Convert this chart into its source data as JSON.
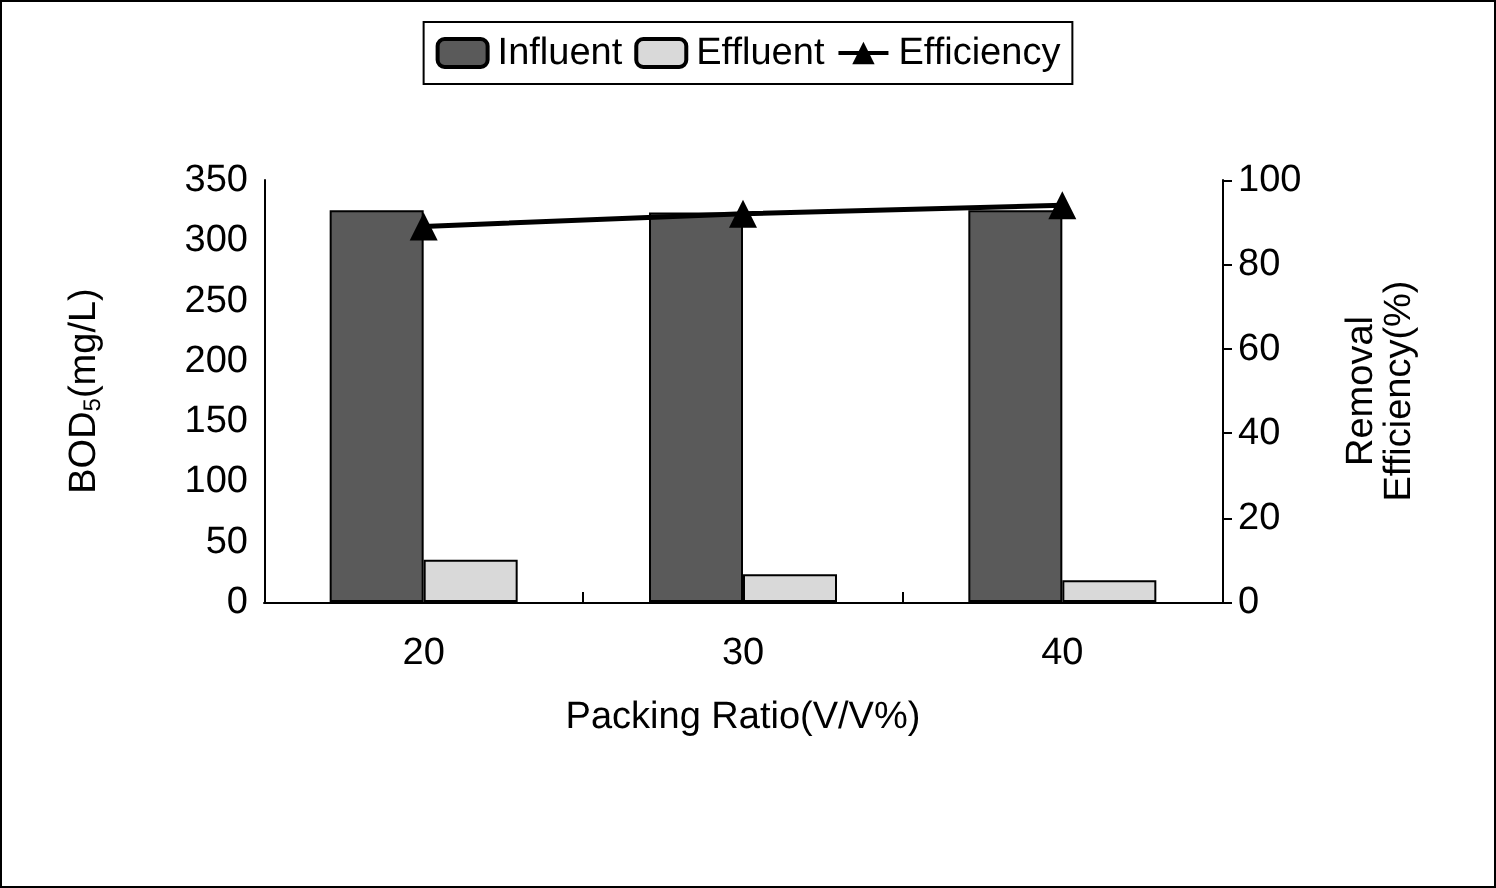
{
  "chart_data": {
    "type": "bar",
    "xlabel": "Packing Ratio(V/V%)",
    "ylabel": "BOD$_{5}$(mg/L)",
    "y2label": "Removal\nEfficiency(%)",
    "categories": [
      "20",
      "30",
      "40"
    ],
    "series": [
      {
        "name": "Influent",
        "color": "#5a5a5a",
        "values": [
          325,
          323,
          325
        ]
      },
      {
        "name": "Effluent",
        "color": "#d9d9d9",
        "values": [
          35,
          23,
          18
        ]
      },
      {
        "name": "Efficiency",
        "type": "line",
        "axis": "y2",
        "color": "#000000",
        "marker": "triangle",
        "values": [
          89,
          92,
          94
        ]
      }
    ],
    "ylim": [
      0,
      350
    ],
    "yticks": [
      0,
      50,
      100,
      150,
      200,
      250,
      300,
      350
    ],
    "y2lim": [
      0,
      100
    ],
    "y2ticks": [
      0,
      20,
      40,
      60,
      80,
      100
    ],
    "grid": false,
    "legend": "top"
  }
}
